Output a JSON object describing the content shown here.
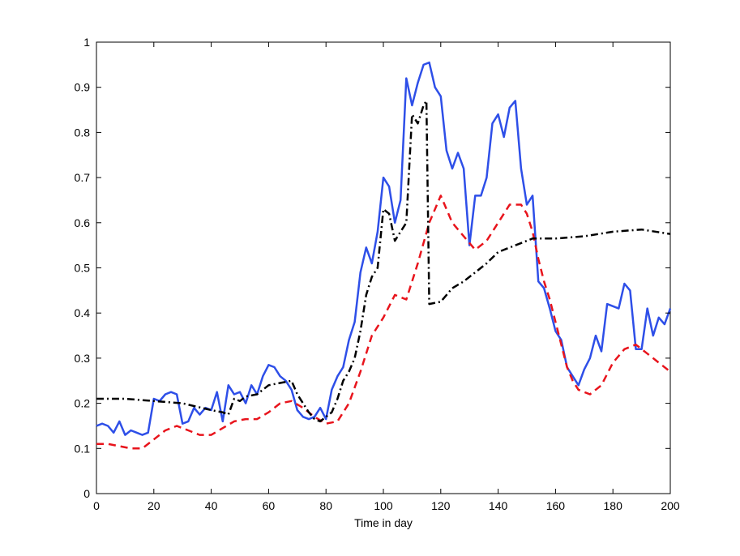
{
  "chart_data": {
    "type": "line",
    "title": "",
    "xlabel": "Time in day",
    "ylabel": "",
    "xlim": [
      0,
      200
    ],
    "ylim": [
      0,
      1
    ],
    "x_ticks": [
      0,
      20,
      40,
      60,
      80,
      100,
      120,
      140,
      160,
      180,
      200
    ],
    "y_ticks": [
      0,
      0.1,
      0.2,
      0.3,
      0.4,
      0.5,
      0.6,
      0.7,
      0.8,
      0.9,
      1
    ],
    "y_tick_labels": [
      "0",
      "0.1",
      "0.2",
      "0.3",
      "0.4",
      "0.5",
      "0.6",
      "0.7",
      "0.8",
      "0.9",
      "1"
    ],
    "grid": false,
    "legend": "none",
    "series": [
      {
        "color": "#2e4fe8",
        "style": "solid",
        "x": [
          0,
          2,
          4,
          6,
          8,
          10,
          12,
          14,
          16,
          18,
          20,
          22,
          24,
          26,
          28,
          30,
          32,
          34,
          36,
          38,
          40,
          42,
          44,
          46,
          48,
          50,
          52,
          54,
          56,
          58,
          60,
          62,
          64,
          66,
          68,
          70,
          72,
          74,
          76,
          78,
          80,
          82,
          84,
          86,
          88,
          90,
          92,
          94,
          96,
          98,
          100,
          102,
          104,
          106,
          108,
          110,
          112,
          114,
          116,
          118,
          120,
          122,
          124,
          126,
          128,
          130,
          132,
          134,
          136,
          138,
          140,
          142,
          144,
          146,
          148,
          150,
          152,
          154,
          156,
          158,
          160,
          162,
          164,
          166,
          168,
          170,
          172,
          174,
          176,
          178,
          180,
          182,
          184,
          186,
          188,
          190,
          192,
          194,
          196,
          198,
          200
        ],
        "values": [
          0.15,
          0.155,
          0.15,
          0.135,
          0.16,
          0.13,
          0.14,
          0.135,
          0.13,
          0.135,
          0.21,
          0.205,
          0.22,
          0.225,
          0.22,
          0.155,
          0.16,
          0.19,
          0.175,
          0.19,
          0.185,
          0.225,
          0.16,
          0.24,
          0.22,
          0.225,
          0.2,
          0.24,
          0.22,
          0.26,
          0.285,
          0.28,
          0.26,
          0.25,
          0.23,
          0.185,
          0.17,
          0.165,
          0.17,
          0.19,
          0.165,
          0.23,
          0.26,
          0.28,
          0.34,
          0.38,
          0.49,
          0.545,
          0.51,
          0.58,
          0.7,
          0.68,
          0.6,
          0.65,
          0.92,
          0.86,
          0.91,
          0.95,
          0.955,
          0.9,
          0.88,
          0.76,
          0.72,
          0.755,
          0.72,
          0.55,
          0.66,
          0.66,
          0.7,
          0.82,
          0.84,
          0.79,
          0.855,
          0.87,
          0.72,
          0.64,
          0.66,
          0.47,
          0.455,
          0.41,
          0.36,
          0.34,
          0.28,
          0.26,
          0.24,
          0.275,
          0.3,
          0.35,
          0.315,
          0.42,
          0.415,
          0.41,
          0.465,
          0.45,
          0.32,
          0.32,
          0.41,
          0.35,
          0.39,
          0.375,
          0.41
        ]
      },
      {
        "color": "#e8141c",
        "style": "dashed",
        "x": [
          0,
          4,
          8,
          12,
          16,
          20,
          24,
          28,
          32,
          36,
          40,
          44,
          48,
          52,
          56,
          60,
          64,
          68,
          72,
          76,
          80,
          84,
          88,
          92,
          96,
          100,
          104,
          108,
          112,
          116,
          120,
          124,
          128,
          132,
          136,
          140,
          144,
          148,
          150,
          152,
          154,
          156,
          158,
          160,
          162,
          164,
          166,
          168,
          172,
          176,
          180,
          184,
          188,
          192,
          196,
          200
        ],
        "values": [
          0.11,
          0.11,
          0.105,
          0.1,
          0.1,
          0.12,
          0.14,
          0.15,
          0.14,
          0.13,
          0.13,
          0.145,
          0.16,
          0.165,
          0.165,
          0.18,
          0.2,
          0.205,
          0.19,
          0.17,
          0.155,
          0.16,
          0.2,
          0.27,
          0.35,
          0.39,
          0.44,
          0.43,
          0.51,
          0.6,
          0.66,
          0.6,
          0.57,
          0.54,
          0.56,
          0.6,
          0.64,
          0.64,
          0.62,
          0.58,
          0.52,
          0.47,
          0.43,
          0.38,
          0.33,
          0.28,
          0.25,
          0.23,
          0.22,
          0.24,
          0.29,
          0.32,
          0.33,
          0.31,
          0.29,
          0.27
        ]
      },
      {
        "color": "#000000",
        "style": "dashdot",
        "x": [
          0,
          10,
          20,
          30,
          40,
          44,
          46,
          48,
          50,
          52,
          56,
          60,
          64,
          68,
          70,
          72,
          74,
          76,
          78,
          80,
          82,
          84,
          86,
          88,
          90,
          92,
          94,
          96,
          98,
          100,
          102,
          104,
          106,
          108,
          110,
          112,
          114,
          115,
          116,
          120,
          124,
          128,
          132,
          136,
          140,
          144,
          148,
          152,
          160,
          170,
          180,
          190,
          200
        ],
        "values": [
          0.21,
          0.21,
          0.205,
          0.2,
          0.185,
          0.18,
          0.175,
          0.21,
          0.205,
          0.215,
          0.22,
          0.24,
          0.245,
          0.25,
          0.22,
          0.2,
          0.18,
          0.165,
          0.16,
          0.17,
          0.18,
          0.21,
          0.25,
          0.27,
          0.3,
          0.36,
          0.44,
          0.48,
          0.5,
          0.63,
          0.62,
          0.56,
          0.58,
          0.6,
          0.84,
          0.82,
          0.86,
          0.87,
          0.42,
          0.425,
          0.455,
          0.47,
          0.49,
          0.51,
          0.535,
          0.545,
          0.555,
          0.565,
          0.565,
          0.57,
          0.58,
          0.585,
          0.575
        ]
      }
    ]
  }
}
